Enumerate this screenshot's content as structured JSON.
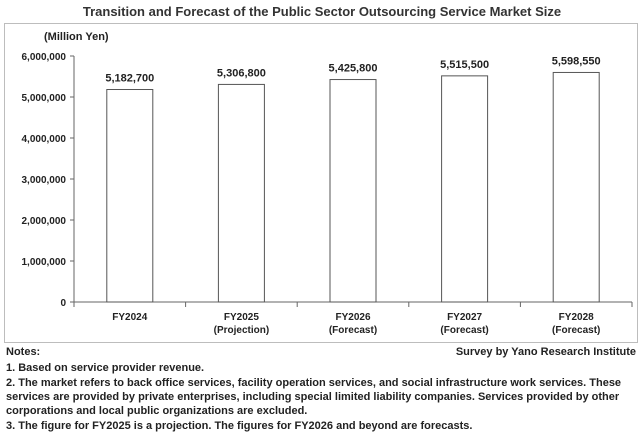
{
  "chart_data": {
    "type": "bar",
    "title": "Transition and Forecast of the Public Sector Outsourcing Service Market Size",
    "ylabel": "(Million Yen)",
    "xlabel": "",
    "categories": [
      [
        "FY2024"
      ],
      [
        "FY2025",
        "(Projection)"
      ],
      [
        "FY2026",
        "(Forecast)"
      ],
      [
        "FY2027",
        "(Forecast)"
      ],
      [
        "FY2028",
        "(Forecast)"
      ]
    ],
    "values": [
      5182700,
      5306800,
      5425800,
      5515500,
      5598550
    ],
    "data_labels": [
      "5,182,700",
      "5,306,800",
      "5,425,800",
      "5,515,500",
      "5,598,550"
    ],
    "ylim": [
      0,
      6000000
    ],
    "yticks": [
      0,
      1000000,
      2000000,
      3000000,
      4000000,
      5000000,
      6000000
    ],
    "ytick_labels": [
      "0",
      "1,000,000",
      "2,000,000",
      "3,000,000",
      "4,000,000",
      "5,000,000",
      "6,000,000"
    ],
    "grid": false,
    "bar_color": "#ffffff",
    "bar_edge_color": "#555555"
  },
  "footer": {
    "notes_heading": "Notes:",
    "source": "Survey by Yano Research Institute",
    "notes": [
      "1. Based on service provider revenue.",
      "2. The market refers to back office services, facility operation services, and social infrastructure work services. These services are provided by private enterprises, including special limited liability companies. Services provided by other corporations and local public organizations are excluded.",
      "3. The figure for FY2025 is a projection. The figures for FY2026 and beyond are forecasts."
    ]
  }
}
